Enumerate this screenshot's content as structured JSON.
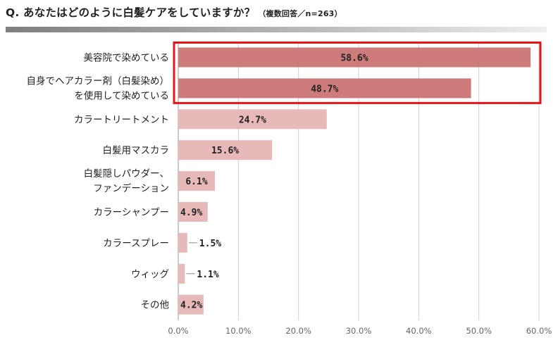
{
  "question": {
    "text": "Q. あなたはどのように白髪ケアをしていますか？",
    "note": "（複数回答／n=263）"
  },
  "colors": {
    "highlight_bar": "#cd7b7b",
    "normal_bar": "#e8b9b9",
    "highlight_box": "#e8141a",
    "grid": "#cfcfcf"
  },
  "chart_data": {
    "type": "bar",
    "orientation": "horizontal",
    "categories": [
      [
        "美容院で染めている"
      ],
      [
        "自身でヘアカラー剤（白髪染め）",
        "を使用して染めている"
      ],
      [
        "カラートリートメント"
      ],
      [
        "白髪用マスカラ"
      ],
      [
        "白髪隠しパウダー、",
        "ファンデーション"
      ],
      [
        "カラーシャンプー"
      ],
      [
        "カラースプレー"
      ],
      [
        "ウィッグ"
      ],
      [
        "その他"
      ]
    ],
    "values": [
      58.6,
      48.7,
      24.7,
      15.6,
      6.1,
      4.9,
      1.5,
      1.1,
      4.2
    ],
    "value_labels": [
      "58.6%",
      "48.7%",
      "24.7%",
      "15.6%",
      "6.1%",
      "4.9%",
      "1.5%",
      "1.1%",
      "4.2%"
    ],
    "highlighted": [
      true,
      true,
      false,
      false,
      false,
      false,
      false,
      false,
      false
    ],
    "xlim": [
      0,
      60
    ],
    "x_ticks": [
      0,
      10,
      20,
      30,
      40,
      50,
      60
    ],
    "x_tick_labels": [
      "0.0%",
      "10.0%",
      "20.0%",
      "30.0%",
      "40.0%",
      "50.0%",
      "60.0%"
    ],
    "grid": true
  }
}
